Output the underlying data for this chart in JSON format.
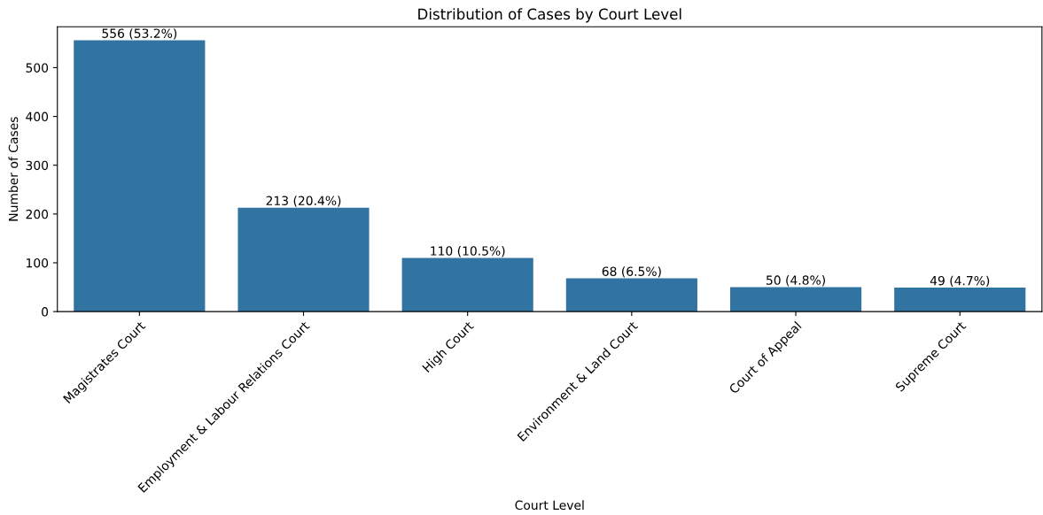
{
  "chart_data": {
    "type": "bar",
    "title": "Distribution of Cases by Court Level",
    "xlabel": "Court Level",
    "ylabel": "Number of Cases",
    "categories": [
      "Magistrates Court",
      "Employment & Labour Relations Court",
      "High Court",
      "Environment & Land Court",
      "Court of Appeal",
      "Supreme Court"
    ],
    "values": [
      556,
      213,
      110,
      68,
      50,
      49
    ],
    "value_labels": [
      "556 (53.2%)",
      "213 (20.4%)",
      "110 (10.5%)",
      "68 (6.5%)",
      "50 (4.8%)",
      "49 (4.7%)"
    ],
    "color": "#3274a1",
    "ylim": [
      0,
      583.8
    ],
    "yticks": [
      0,
      100,
      200,
      300,
      400,
      500
    ],
    "grid": false
  }
}
